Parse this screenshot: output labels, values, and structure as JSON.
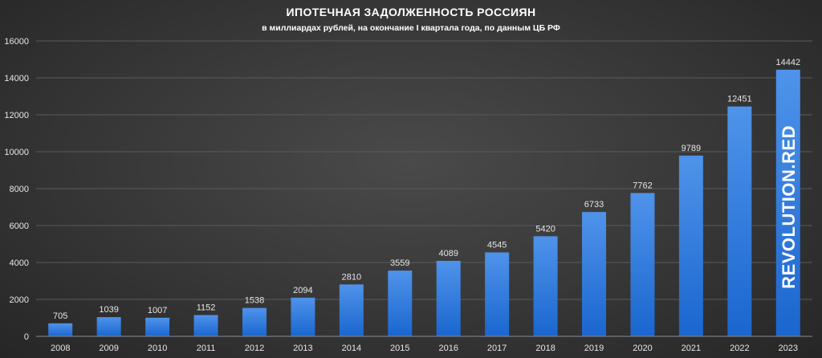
{
  "chart_data": {
    "type": "bar",
    "title": "ИПОТЕЧНАЯ ЗАДОЛЖЕННОСТЬ РОССИЯН",
    "subtitle": "в миллиардах рублей, на окончание I квартала года, по данным ЦБ РФ",
    "categories": [
      "2008",
      "2009",
      "2010",
      "2011",
      "2012",
      "2013",
      "2014",
      "2015",
      "2016",
      "2017",
      "2018",
      "2019",
      "2020",
      "2021",
      "2022",
      "2023"
    ],
    "values": [
      705,
      1039,
      1007,
      1152,
      1538,
      2094,
      2810,
      3559,
      4089,
      4545,
      5420,
      6733,
      7762,
      9789,
      12451,
      14442
    ],
    "ylim": [
      0,
      16000
    ],
    "yticks": [
      0,
      2000,
      4000,
      6000,
      8000,
      10000,
      12000,
      14000,
      16000
    ],
    "grid": true,
    "bar_color": "#1f6fd6",
    "bar_color_light": "#4a8fe8"
  },
  "watermark": "REVOLUTION.RED"
}
